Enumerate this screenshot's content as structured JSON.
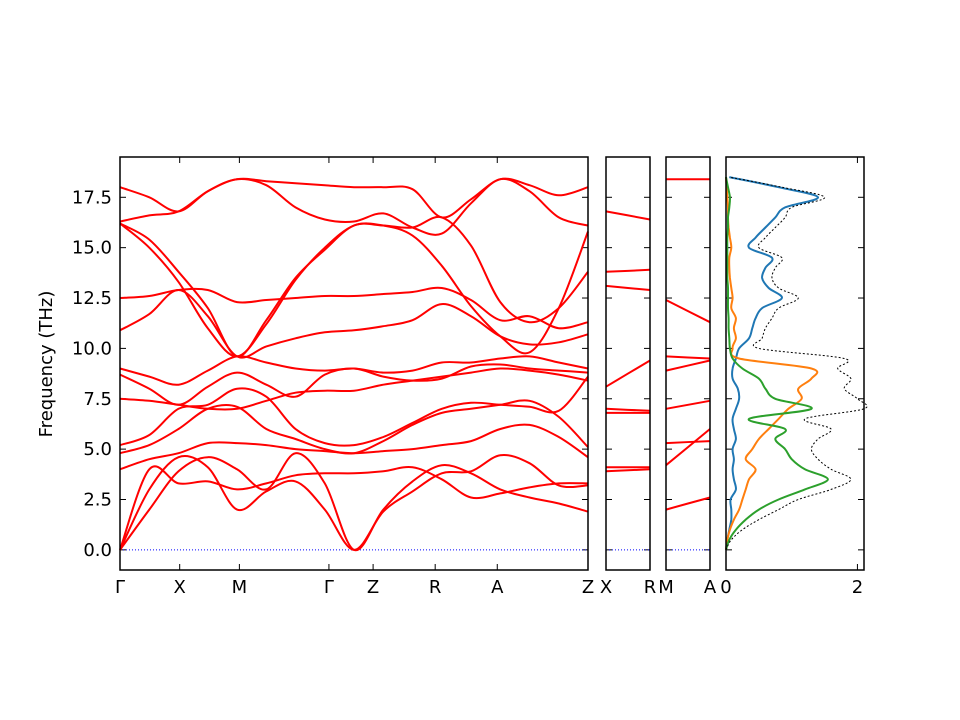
{
  "chart_data": {
    "type": "line",
    "ylabel": "Frequency (THz)",
    "ylim": [
      -1.0,
      19.5
    ],
    "yticks": [
      "0.0",
      "2.5",
      "5.0",
      "7.5",
      "10.0",
      "12.5",
      "15.0",
      "17.5"
    ],
    "colors": {
      "bands": "#ff0000",
      "zero_line": "#0000ff",
      "dos_1": "#1f77b4",
      "dos_2": "#ff7f0e",
      "dos_3": "#2ca02c",
      "dos_total": "#000000"
    },
    "panels": [
      {
        "path_labels": [
          "Γ",
          "X",
          "M",
          "Γ",
          "Z",
          "R",
          "A",
          "Z"
        ],
        "x": [
          0,
          0.125,
          0.25,
          0.4375,
          0.53,
          0.66,
          0.79,
          0.98
        ],
        "bands": [
          [
            0.0,
            4.0,
            3.3,
            3.4,
            3.0,
            3.3,
            3.7,
            3.8,
            3.8,
            3.9,
            4.1,
            3.5,
            2.6,
            2.8,
            3.1,
            3.3,
            3.3
          ],
          [
            0.0,
            3.0,
            4.6,
            4.1,
            2.0,
            2.9,
            3.4,
            2.0,
            0.0,
            1.9,
            2.9,
            3.8,
            3.9,
            4.7,
            4.3,
            3.2,
            3.2
          ],
          [
            0.0,
            2.0,
            3.9,
            4.6,
            4.0,
            3.0,
            4.8,
            3.3,
            0.0,
            2.0,
            3.4,
            4.2,
            3.8,
            3.0,
            2.6,
            2.3,
            1.9
          ],
          [
            4.0,
            4.5,
            4.8,
            5.3,
            5.3,
            5.2,
            5.0,
            4.9,
            4.8,
            4.9,
            5.0,
            5.2,
            5.4,
            6.0,
            6.2,
            5.6,
            4.6
          ],
          [
            4.8,
            5.2,
            6.0,
            7.0,
            7.1,
            6.0,
            5.5,
            5.0,
            4.8,
            5.4,
            6.2,
            6.8,
            7.0,
            7.2,
            7.4,
            6.6,
            5.1
          ],
          [
            5.2,
            5.7,
            7.0,
            7.2,
            8.0,
            7.6,
            6.0,
            5.3,
            5.2,
            5.6,
            6.3,
            7.0,
            7.3,
            7.2,
            7.1,
            6.9,
            8.6
          ],
          [
            7.5,
            7.4,
            7.2,
            7.0,
            7.0,
            7.4,
            7.8,
            7.9,
            7.9,
            8.2,
            8.4,
            8.6,
            8.8,
            9.0,
            8.9,
            8.7,
            8.4
          ],
          [
            8.7,
            8.0,
            7.2,
            8.1,
            8.8,
            8.2,
            7.6,
            8.7,
            9.0,
            8.6,
            8.4,
            8.5,
            9.1,
            9.2,
            9.0,
            8.9,
            8.8
          ],
          [
            9.0,
            8.6,
            8.2,
            8.9,
            9.6,
            9.3,
            9.0,
            8.9,
            9.0,
            8.8,
            8.9,
            9.3,
            9.3,
            9.5,
            9.6,
            9.3,
            9.0
          ],
          [
            10.9,
            11.7,
            12.9,
            11.6,
            9.6,
            10.1,
            10.5,
            10.8,
            10.9,
            11.1,
            11.4,
            12.2,
            11.6,
            10.6,
            10.2,
            10.3,
            10.7
          ],
          [
            12.5,
            12.6,
            12.9,
            12.9,
            12.3,
            12.4,
            12.5,
            12.6,
            12.6,
            12.7,
            12.8,
            13.0,
            12.4,
            11.4,
            11.6,
            11.0,
            11.3
          ],
          [
            16.2,
            15.4,
            13.8,
            12.0,
            9.6,
            11.4,
            13.5,
            14.9,
            16.1,
            16.1,
            16.0,
            16.5,
            15.1,
            12.3,
            11.3,
            12.0,
            13.8
          ],
          [
            16.2,
            15.0,
            13.3,
            11.0,
            9.6,
            11.2,
            13.4,
            15.0,
            16.1,
            16.1,
            15.6,
            14.1,
            12.1,
            10.6,
            9.8,
            12.0,
            15.8
          ],
          [
            16.3,
            16.6,
            16.8,
            17.8,
            18.4,
            18.1,
            17.0,
            16.4,
            16.3,
            16.7,
            16.0,
            15.7,
            17.2,
            18.4,
            17.8,
            16.5,
            16.1
          ],
          [
            18.0,
            17.5,
            16.8,
            17.8,
            18.4,
            18.3,
            18.2,
            18.1,
            18.0,
            18.0,
            17.9,
            16.5,
            17.4,
            18.4,
            18.1,
            17.6,
            18.0
          ]
        ]
      },
      {
        "path_labels": [
          "X",
          "R"
        ],
        "bands": [
          [
            3.9,
            4.0
          ],
          [
            4.1,
            4.1
          ],
          [
            6.8,
            6.8
          ],
          [
            7.0,
            6.9
          ],
          [
            8.1,
            9.4
          ],
          [
            13.1,
            12.9
          ],
          [
            13.8,
            13.9
          ],
          [
            16.8,
            16.4
          ]
        ]
      },
      {
        "path_labels": [
          "M",
          "A"
        ],
        "bands": [
          [
            2.0,
            2.6
          ],
          [
            4.2,
            6.0
          ],
          [
            5.3,
            5.4
          ],
          [
            7.0,
            7.4
          ],
          [
            8.9,
            9.4
          ],
          [
            9.6,
            9.5
          ],
          [
            12.4,
            11.3
          ],
          [
            18.4,
            18.4
          ]
        ]
      }
    ],
    "dos": {
      "xlim": [
        0,
        2.1
      ],
      "xticks": [
        "0",
        "2"
      ],
      "freq": [
        0.0,
        0.5,
        1.0,
        1.5,
        2.0,
        2.5,
        3.0,
        3.5,
        4.0,
        4.5,
        5.0,
        5.5,
        6.0,
        6.5,
        7.0,
        7.5,
        8.0,
        8.5,
        9.0,
        9.5,
        10.0,
        10.5,
        11.0,
        11.5,
        12.0,
        12.5,
        13.0,
        13.5,
        14.0,
        14.5,
        15.0,
        15.5,
        16.0,
        16.5,
        17.0,
        17.5,
        18.0,
        18.5
      ],
      "series": [
        {
          "values": [
            0.0,
            0.02,
            0.05,
            0.08,
            0.08,
            0.07,
            0.15,
            0.12,
            0.1,
            0.12,
            0.1,
            0.15,
            0.12,
            0.1,
            0.15,
            0.2,
            0.18,
            0.1,
            0.1,
            0.15,
            0.2,
            0.35,
            0.4,
            0.45,
            0.55,
            0.85,
            0.65,
            0.55,
            0.6,
            0.7,
            0.35,
            0.45,
            0.6,
            0.75,
            0.9,
            1.4,
            0.8,
            0.05
          ]
        },
        {
          "values": [
            0.0,
            0.02,
            0.06,
            0.12,
            0.2,
            0.25,
            0.3,
            0.35,
            0.45,
            0.3,
            0.4,
            0.5,
            0.65,
            0.8,
            0.95,
            1.15,
            1.1,
            1.3,
            1.3,
            0.2,
            0.1,
            0.15,
            0.12,
            0.15,
            0.08,
            0.1,
            0.08,
            0.06,
            0.05,
            0.05,
            0.08,
            0.06,
            0.04,
            0.03,
            0.03,
            0.02,
            0.01,
            0.0
          ]
        },
        {
          "values": [
            0.0,
            0.05,
            0.15,
            0.3,
            0.5,
            0.8,
            1.2,
            1.55,
            1.2,
            1.0,
            0.9,
            0.75,
            0.9,
            0.35,
            1.3,
            0.75,
            0.6,
            0.5,
            0.25,
            0.1,
            0.06,
            0.05,
            0.04,
            0.04,
            0.03,
            0.03,
            0.03,
            0.02,
            0.02,
            0.02,
            0.02,
            0.02,
            0.03,
            0.03,
            0.05,
            0.06,
            0.03,
            0.0
          ]
        },
        {
          "values": [
            0.0,
            0.08,
            0.25,
            0.5,
            0.8,
            1.1,
            1.6,
            1.9,
            1.6,
            1.4,
            1.3,
            1.4,
            1.6,
            1.2,
            2.1,
            2.0,
            1.8,
            1.9,
            1.7,
            1.8,
            0.5,
            0.55,
            0.6,
            0.7,
            0.8,
            1.1,
            0.8,
            0.7,
            0.75,
            0.85,
            0.5,
            0.6,
            0.75,
            0.9,
            1.0,
            1.5,
            0.85,
            0.05
          ]
        }
      ]
    }
  }
}
